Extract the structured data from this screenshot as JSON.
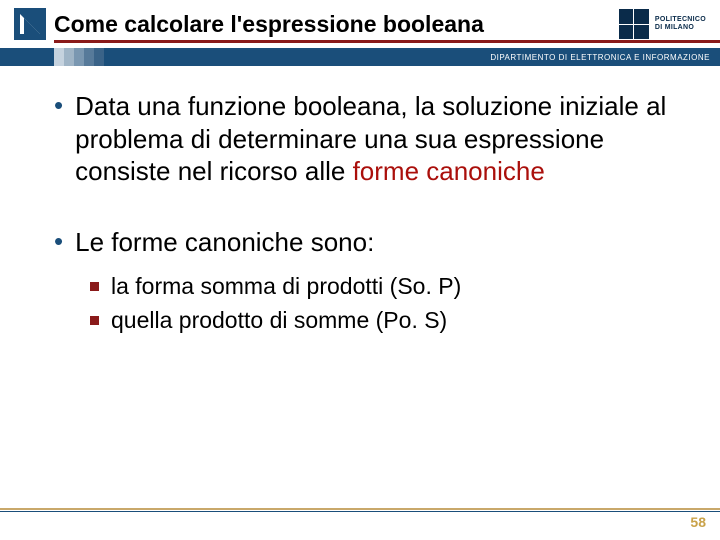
{
  "header": {
    "title": "Come calcolare l'espressione booleana",
    "logo_line1": "POLITECNICO",
    "logo_line2": "DI MILANO",
    "department": "DIPARTIMENTO DI ELETTRONICA E INFORMAZIONE"
  },
  "body": {
    "bullet1_a": "Data una funzione booleana, la soluzione iniziale al problema di determinare una sua espressione consiste nel ricorso alle ",
    "bullet1_b": "forme canoniche",
    "bullet2": "Le forme canoniche sono:",
    "sub1": "la forma somma di prodotti (So. P)",
    "sub2": "quella prodotto di somme (Po. S)"
  },
  "footer": {
    "page": "58"
  },
  "colors": {
    "blue": "#1a4e7a",
    "darkred": "#8a1a1a",
    "redtext": "#aa0f0b",
    "gold": "#c9a249"
  },
  "stripes": [
    "#9fb4c6",
    "#7a97b1",
    "#577a9a",
    "#3a6388",
    "#1a4e7a"
  ]
}
